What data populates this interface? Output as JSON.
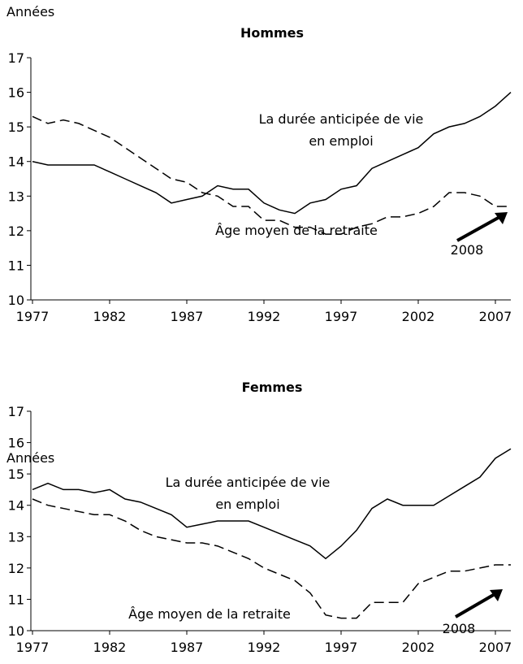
{
  "chart_data": [
    {
      "type": "line",
      "title": "Hommes",
      "y_label": "Années",
      "annotation": "2008",
      "x": [
        1977,
        1978,
        1979,
        1980,
        1981,
        1982,
        1983,
        1984,
        1985,
        1986,
        1987,
        1988,
        1989,
        1990,
        1991,
        1992,
        1993,
        1994,
        1995,
        1996,
        1997,
        1998,
        1999,
        2000,
        2001,
        2002,
        2003,
        2004,
        2005,
        2006,
        2007,
        2008
      ],
      "xlim": [
        1977,
        2008
      ],
      "xticks": [
        1977,
        1982,
        1987,
        1992,
        1997,
        2002,
        2007
      ],
      "ylim": [
        10,
        17
      ],
      "yticks": [
        10,
        11,
        12,
        13,
        14,
        15,
        16,
        17
      ],
      "series": [
        {
          "name": "La durée anticipée de vie en emploi",
          "color": "#000000",
          "dash": "solid",
          "values": [
            14.0,
            13.9,
            13.9,
            13.9,
            13.9,
            13.7,
            13.5,
            13.3,
            13.1,
            12.8,
            12.9,
            13.0,
            13.3,
            13.2,
            13.2,
            12.8,
            12.6,
            12.5,
            12.8,
            12.9,
            13.2,
            13.3,
            13.8,
            14.0,
            14.2,
            14.4,
            14.8,
            15.0,
            15.1,
            15.3,
            15.6,
            16.0
          ]
        },
        {
          "name": "Âge moyen de la retraite",
          "color": "#000000",
          "dash": "dashed",
          "values": [
            15.3,
            15.1,
            15.2,
            15.1,
            14.9,
            14.7,
            14.4,
            14.1,
            13.8,
            13.5,
            13.4,
            13.1,
            13.0,
            12.7,
            12.7,
            12.3,
            12.3,
            12.1,
            12.1,
            11.9,
            11.9,
            12.1,
            12.2,
            12.4,
            12.4,
            12.5,
            12.7,
            13.1,
            13.1,
            13.0,
            12.7,
            12.7
          ]
        }
      ]
    },
    {
      "type": "line",
      "title": "Femmes",
      "y_label": "Années",
      "annotation": "2008",
      "x": [
        1977,
        1978,
        1979,
        1980,
        1981,
        1982,
        1983,
        1984,
        1985,
        1986,
        1987,
        1988,
        1989,
        1990,
        1991,
        1992,
        1993,
        1994,
        1995,
        1996,
        1997,
        1998,
        1999,
        2000,
        2001,
        2002,
        2003,
        2004,
        2005,
        2006,
        2007,
        2008
      ],
      "xlim": [
        1977,
        2008
      ],
      "xticks": [
        1977,
        1982,
        1987,
        1992,
        1997,
        2002,
        2007
      ],
      "ylim": [
        10,
        17
      ],
      "yticks": [
        10,
        11,
        12,
        13,
        14,
        15,
        16,
        17
      ],
      "series": [
        {
          "name": "La durée anticipée de vie en emploi",
          "color": "#000000",
          "dash": "solid",
          "values": [
            14.5,
            14.7,
            14.5,
            14.5,
            14.4,
            14.5,
            14.2,
            14.1,
            13.9,
            13.7,
            13.3,
            13.4,
            13.5,
            13.5,
            13.5,
            13.3,
            13.1,
            12.9,
            12.7,
            12.3,
            12.7,
            13.2,
            13.9,
            14.2,
            14.0,
            14.0,
            14.0,
            14.3,
            14.6,
            14.9,
            15.5,
            15.8
          ]
        },
        {
          "name": "Âge moyen de la retraite",
          "color": "#000000",
          "dash": "dashed",
          "values": [
            14.2,
            14.0,
            13.9,
            13.8,
            13.7,
            13.7,
            13.5,
            13.2,
            13.0,
            12.9,
            12.8,
            12.8,
            12.7,
            12.5,
            12.3,
            12.0,
            11.8,
            11.6,
            11.2,
            10.5,
            10.4,
            10.4,
            10.9,
            10.9,
            10.9,
            11.5,
            11.7,
            11.9,
            11.9,
            12.0,
            12.1,
            12.1
          ]
        }
      ]
    }
  ]
}
